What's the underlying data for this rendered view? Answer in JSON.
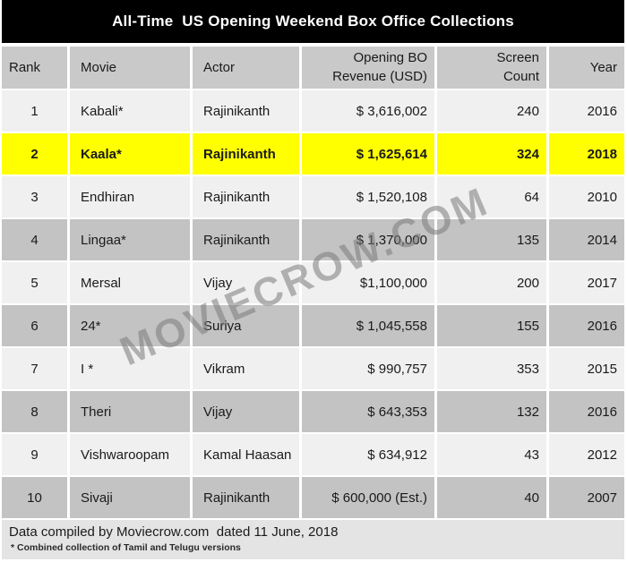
{
  "title": "All-Time  US Opening Weekend Box Office Collections",
  "watermark": "MOVIECROW.COM",
  "columns": [
    "Rank",
    "Movie",
    "Actor",
    "Opening BO\nRevenue (USD)",
    "Screen\nCount",
    "Year"
  ],
  "rows": [
    {
      "rank": "1",
      "movie": "Kabali*",
      "actor": "Rajinikanth",
      "revenue": "$ 3,616,002",
      "screens": "240",
      "year": "2016"
    },
    {
      "rank": "2",
      "movie": "Kaala*",
      "actor": "Rajinikanth",
      "revenue": "$ 1,625,614",
      "screens": "324",
      "year": "2018"
    },
    {
      "rank": "3",
      "movie": "Endhiran",
      "actor": "Rajinikanth",
      "revenue": "$ 1,520,108",
      "screens": "64",
      "year": "2010"
    },
    {
      "rank": "4",
      "movie": "Lingaa*",
      "actor": "Rajinikanth",
      "revenue": "$ 1,370,000",
      "screens": "135",
      "year": "2014"
    },
    {
      "rank": "5",
      "movie": "Mersal",
      "actor": "Vijay",
      "revenue": "$1,100,000",
      "screens": "200",
      "year": "2017"
    },
    {
      "rank": "6",
      "movie": "24*",
      "actor": "Suriya",
      "revenue": "$ 1,045,558",
      "screens": "155",
      "year": "2016"
    },
    {
      "rank": "7",
      "movie": "I *",
      "actor": "Vikram",
      "revenue": "$ 990,757",
      "screens": "353",
      "year": "2015"
    },
    {
      "rank": "8",
      "movie": "Theri",
      "actor": "Vijay",
      "revenue": "$ 643,353",
      "screens": "132",
      "year": "2016"
    },
    {
      "rank": "9",
      "movie": "Vishwaroopam",
      "actor": "Kamal Haasan",
      "revenue": "$ 634,912",
      "screens": "43",
      "year": "2012"
    },
    {
      "rank": "10",
      "movie": "Sivaji",
      "actor": "Rajinikanth",
      "revenue": "$ 600,000 (Est.)",
      "screens": "40",
      "year": "2007"
    }
  ],
  "highlighted_rank": "2",
  "footer": {
    "line1": "Data compiled by Moviecrow.com  dated 11 June, 2018",
    "line2": "* Combined collection of Tamil and Telugu versions"
  },
  "colors": {
    "title_bg": "#000000",
    "header_bg": "#C9C9C9",
    "row_light": "#F0F0F0",
    "row_dark": "#C3C3C3",
    "highlight": "#FFFF00",
    "footer_bg": "#E4E4E4"
  },
  "chart_data": {
    "type": "table",
    "title": "All-Time  US Opening Weekend Box Office Collections",
    "columns": [
      "Rank",
      "Movie",
      "Actor",
      "Opening BO Revenue (USD)",
      "Screen Count",
      "Year"
    ],
    "rows": [
      [
        1,
        "Kabali*",
        "Rajinikanth",
        3616002,
        240,
        2016
      ],
      [
        2,
        "Kaala*",
        "Rajinikanth",
        1625614,
        324,
        2018
      ],
      [
        3,
        "Endhiran",
        "Rajinikanth",
        1520108,
        64,
        2010
      ],
      [
        4,
        "Lingaa*",
        "Rajinikanth",
        1370000,
        135,
        2014
      ],
      [
        5,
        "Mersal",
        "Vijay",
        1100000,
        200,
        2017
      ],
      [
        6,
        "24*",
        "Suriya",
        1045558,
        155,
        2016
      ],
      [
        7,
        "I *",
        "Vikram",
        990757,
        353,
        2015
      ],
      [
        8,
        "Theri",
        "Vijay",
        643353,
        132,
        2016
      ],
      [
        9,
        "Vishwaroopam",
        "Kamal Haasan",
        634912,
        43,
        2012
      ],
      [
        10,
        "Sivaji",
        "Rajinikanth",
        600000,
        40,
        2007
      ]
    ],
    "notes": [
      "Row with rank 2 (Kaala*) is highlighted in yellow",
      "$ 600,000 is an estimate (Est.)"
    ]
  }
}
